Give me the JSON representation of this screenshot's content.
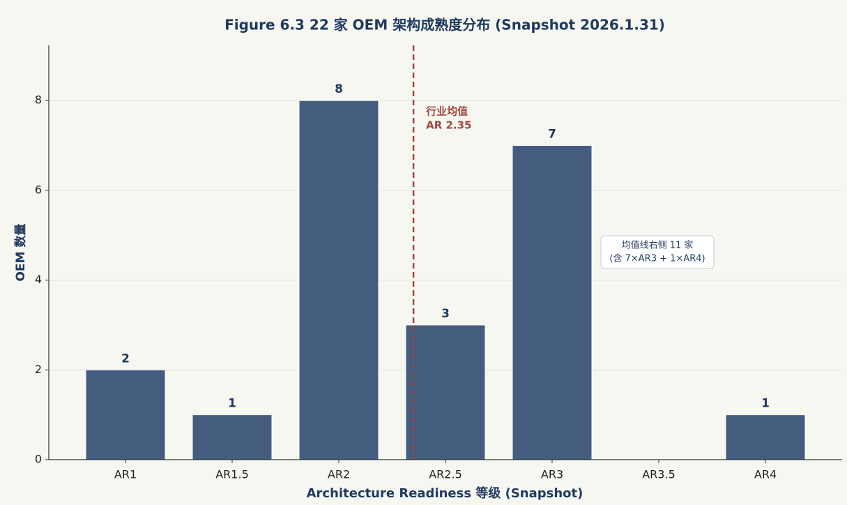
{
  "chart_data": {
    "type": "bar",
    "title": "Figure 6.3  22 家 OEM 架构成熟度分布 (Snapshot 2026.1.31)",
    "x_label": "Architecture Readiness 等级 (Snapshot)",
    "y_label": "OEM 数量",
    "categories": [
      "AR1",
      "AR1.5",
      "AR2",
      "AR2.5",
      "AR3",
      "AR3.5",
      "AR4"
    ],
    "values": [
      2,
      1,
      8,
      3,
      7,
      0,
      1
    ],
    "color": "#40597a",
    "ylim": [
      0,
      9.23
    ],
    "yticks": [
      0,
      2,
      4,
      6,
      8
    ],
    "grid": true,
    "mean_line": {
      "value": 2.35,
      "color": "#a0473f",
      "label_lines": [
        "行业均值",
        "AR 2.35"
      ]
    },
    "annotation_lines": [
      "均值线右侧 11 家",
      "(含 7×AR3 + 1×AR4)"
    ]
  }
}
